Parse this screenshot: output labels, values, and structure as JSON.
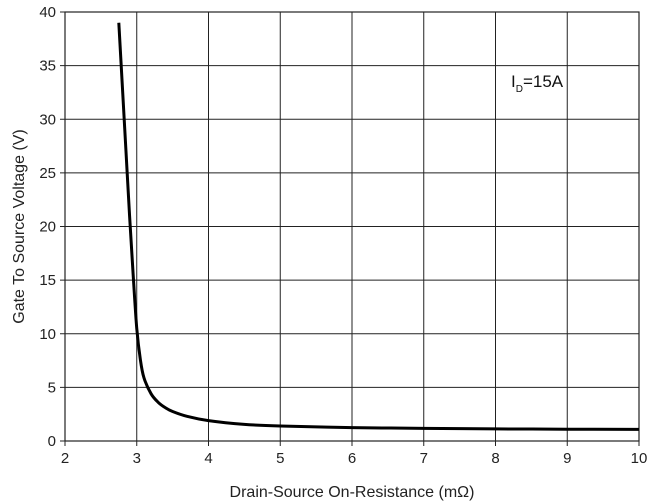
{
  "chart_data": {
    "type": "line",
    "xlabel": "Drain-Source On-Resistance (mΩ)",
    "ylabel": "Gate To Source Voltage (V)",
    "xlim": [
      2,
      10
    ],
    "ylim": [
      0,
      40
    ],
    "xticks": [
      "2",
      "3",
      "4",
      "5",
      "6",
      "7",
      "8",
      "9",
      "10"
    ],
    "yticks": [
      "0",
      "5",
      "10",
      "15",
      "20",
      "25",
      "30",
      "35",
      "40"
    ],
    "grid": true,
    "annotation": {
      "main": "I",
      "sub": "D",
      "rest": "=15A"
    },
    "series": [
      {
        "color": "#000000",
        "x": [
          2.75,
          2.8,
          2.85,
          2.9,
          2.95,
          3.0,
          3.05,
          3.1,
          3.2,
          3.3,
          3.4,
          3.5,
          3.7,
          4.0,
          4.5,
          5.0,
          6.0,
          7.0,
          8.0,
          9.0,
          10.0
        ],
        "y": [
          39.0,
          33.0,
          27.0,
          21.0,
          15.5,
          10.5,
          7.6,
          5.9,
          4.4,
          3.6,
          3.1,
          2.75,
          2.3,
          1.9,
          1.55,
          1.4,
          1.25,
          1.18,
          1.13,
          1.1,
          1.08
        ]
      }
    ]
  }
}
